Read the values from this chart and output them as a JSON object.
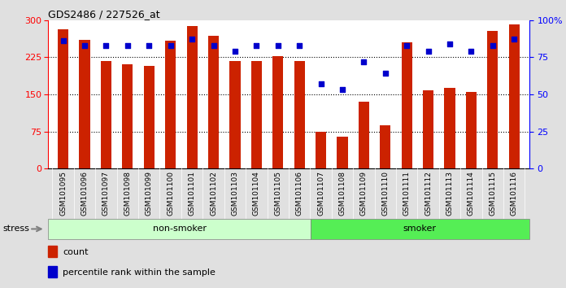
{
  "title": "GDS2486 / 227526_at",
  "categories": [
    "GSM101095",
    "GSM101096",
    "GSM101097",
    "GSM101098",
    "GSM101099",
    "GSM101100",
    "GSM101101",
    "GSM101102",
    "GSM101103",
    "GSM101104",
    "GSM101105",
    "GSM101106",
    "GSM101107",
    "GSM101108",
    "GSM101109",
    "GSM101110",
    "GSM101111",
    "GSM101112",
    "GSM101113",
    "GSM101114",
    "GSM101115",
    "GSM101116"
  ],
  "bar_values": [
    281,
    260,
    218,
    211,
    207,
    258,
    288,
    269,
    218,
    218,
    227,
    218,
    75,
    65,
    135,
    88,
    255,
    158,
    163,
    155,
    278,
    292
  ],
  "dot_values": [
    86,
    83,
    83,
    83,
    83,
    83,
    87,
    83,
    79,
    83,
    83,
    83,
    57,
    53,
    72,
    64,
    83,
    79,
    84,
    79,
    83,
    87
  ],
  "non_smoker_count": 12,
  "smoker_count": 10,
  "bar_color": "#cc2200",
  "dot_color": "#0000cc",
  "ylim_left": [
    0,
    300
  ],
  "ylim_right": [
    0,
    100
  ],
  "yticks_left": [
    0,
    75,
    150,
    225,
    300
  ],
  "yticks_right": [
    0,
    25,
    50,
    75,
    100
  ],
  "grid_values": [
    75,
    150,
    225
  ],
  "non_smoker_color": "#ccffcc",
  "smoker_color": "#55ee55",
  "stress_label": "stress",
  "non_smoker_label": "non-smoker",
  "smoker_label": "smoker",
  "legend_count": "count",
  "legend_pct": "percentile rank within the sample",
  "background_color": "#e0e0e0",
  "plot_bg_color": "#ffffff",
  "tick_bg_color": "#cccccc"
}
